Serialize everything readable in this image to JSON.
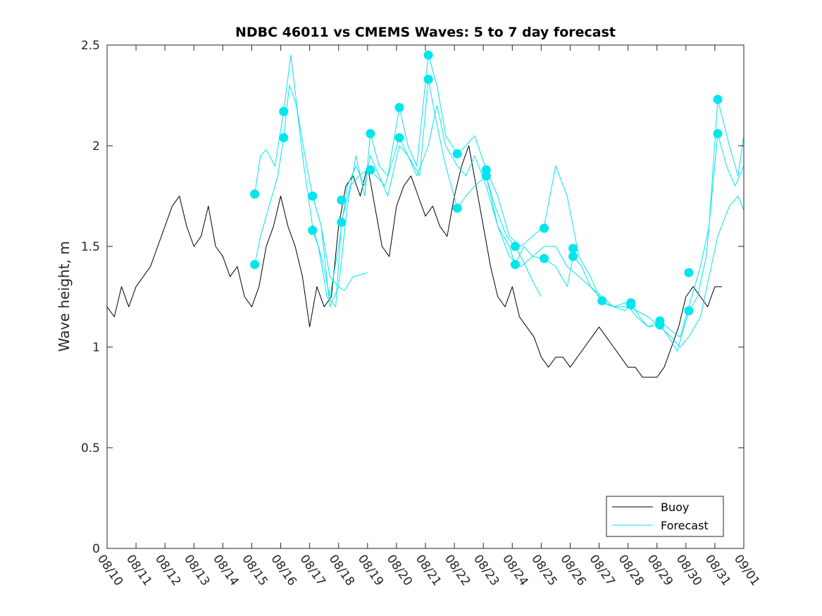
{
  "chart_data": {
    "type": "line",
    "title": "NDBC 46011 vs CMEMS Waves: 5 to 7 day forecast",
    "xlabel": "",
    "ylabel": "Wave height, m",
    "xlim": [
      0,
      22
    ],
    "ylim": [
      0,
      2.5
    ],
    "x_tick_values": [
      0,
      1,
      2,
      3,
      4,
      5,
      6,
      7,
      8,
      9,
      10,
      11,
      12,
      13,
      14,
      15,
      16,
      17,
      18,
      19,
      20,
      21,
      22
    ],
    "x_tick_labels": [
      "08/10",
      "08/11",
      "08/12",
      "08/13",
      "08/14",
      "08/15",
      "08/16",
      "08/17",
      "08/18",
      "08/19",
      "08/20",
      "08/21",
      "08/22",
      "08/23",
      "08/24",
      "08/25",
      "08/26",
      "08/27",
      "08/28",
      "08/29",
      "08/30",
      "08/31",
      "09/01"
    ],
    "y_tick_values": [
      0,
      0.5,
      1,
      1.5,
      2,
      2.5
    ],
    "y_tick_labels": [
      "0",
      "0.5",
      "1",
      "1.5",
      "2",
      "2.5"
    ],
    "legend": {
      "position": "bottom-right",
      "entries": [
        {
          "label": "Buoy",
          "color": "#000000"
        },
        {
          "label": "Forecast",
          "color": "#00e5ee"
        }
      ]
    },
    "series": [
      {
        "name": "Buoy",
        "color": "#000000",
        "x": [
          0,
          0.25,
          0.5,
          0.75,
          1,
          1.25,
          1.5,
          1.75,
          2,
          2.25,
          2.5,
          2.75,
          3,
          3.25,
          3.5,
          3.75,
          4,
          4.25,
          4.5,
          4.75,
          5,
          5.25,
          5.5,
          5.75,
          6,
          6.25,
          6.5,
          6.75,
          7,
          7.25,
          7.5,
          7.75,
          8,
          8.25,
          8.5,
          8.75,
          9,
          9.25,
          9.5,
          9.75,
          10,
          10.25,
          10.5,
          10.75,
          11,
          11.25,
          11.5,
          11.75,
          12,
          12.25,
          12.5,
          12.75,
          13,
          13.25,
          13.5,
          13.75,
          14,
          14.25,
          14.5,
          14.75,
          15,
          15.25,
          15.5,
          15.75,
          16,
          16.25,
          16.5,
          16.75,
          17,
          17.25,
          17.5,
          17.75,
          18,
          18.25,
          18.5,
          18.75,
          19,
          19.25,
          19.5,
          19.75,
          20,
          20.25,
          20.5,
          20.75,
          21,
          21.25
        ],
        "values": [
          1.2,
          1.15,
          1.3,
          1.2,
          1.3,
          1.35,
          1.4,
          1.5,
          1.6,
          1.7,
          1.75,
          1.6,
          1.5,
          1.55,
          1.7,
          1.5,
          1.45,
          1.35,
          1.4,
          1.25,
          1.2,
          1.3,
          1.5,
          1.6,
          1.75,
          1.6,
          1.5,
          1.35,
          1.1,
          1.3,
          1.2,
          1.25,
          1.6,
          1.8,
          1.85,
          1.75,
          1.9,
          1.7,
          1.5,
          1.45,
          1.7,
          1.8,
          1.85,
          1.75,
          1.65,
          1.7,
          1.6,
          1.55,
          1.75,
          1.9,
          2.0,
          1.8,
          1.6,
          1.4,
          1.25,
          1.2,
          1.3,
          1.15,
          1.1,
          1.05,
          0.95,
          0.9,
          0.95,
          0.95,
          0.9,
          0.95,
          1.0,
          1.05,
          1.1,
          1.05,
          1.0,
          0.95,
          0.9,
          0.9,
          0.85,
          0.85,
          0.85,
          0.9,
          1.0,
          1.1,
          1.25,
          1.3,
          1.25,
          1.2,
          1.3,
          1.3
        ]
      },
      {
        "name": "Forecast",
        "color": "#00e5ee",
        "x": [
          5.1,
          5.3,
          5.6,
          5.9,
          6.1,
          6.3,
          6.55,
          6.8,
          7.1,
          7.4,
          7.7,
          8.0,
          8.3,
          8.6,
          8.9,
          9.1,
          9.4,
          9.7,
          10.1,
          10.4,
          10.7,
          11.1,
          11.4,
          11.7,
          12.1,
          12.4,
          12.7,
          13.1,
          13.5,
          13.9,
          14.3,
          14.7,
          15.1,
          15.5,
          15.9,
          16.3,
          16.7,
          17.1,
          17.5,
          17.9,
          18.3,
          18.7,
          19.1,
          19.5,
          19.8,
          20.1,
          20.5,
          20.8,
          21.1,
          21.5,
          21.8,
          22.0
        ],
        "values": [
          1.41,
          1.55,
          1.7,
          1.85,
          2.04,
          2.3,
          2.2,
          1.9,
          1.6,
          1.45,
          1.25,
          1.5,
          1.8,
          1.9,
          1.8,
          1.95,
          1.85,
          1.75,
          2.0,
          1.95,
          1.85,
          2.0,
          2.2,
          2.0,
          1.9,
          1.85,
          1.95,
          1.8,
          1.6,
          1.45,
          1.4,
          1.45,
          1.5,
          1.5,
          1.4,
          1.35,
          1.3,
          1.25,
          1.2,
          1.2,
          1.18,
          1.15,
          1.1,
          1.05,
          1.0,
          1.05,
          1.15,
          1.35,
          1.55,
          1.7,
          1.75,
          1.68
        ]
      },
      {
        "name": "Forecast",
        "color": "#00e5ee",
        "x": [
          5.1,
          5.3,
          5.5,
          5.8,
          6.1,
          6.35,
          6.6,
          6.9,
          7.1,
          7.4,
          7.7,
          8.0,
          8.3,
          8.6,
          8.9,
          9.1,
          9.4,
          9.7,
          10.1,
          10.4,
          10.7,
          11.1,
          11.4,
          11.7,
          12.1,
          12.4,
          12.7,
          13.1,
          13.5,
          13.9,
          14.3,
          14.7,
          15.1,
          15.5,
          15.9,
          16.3,
          16.7,
          17.1,
          17.5,
          17.9,
          18.3,
          18.7,
          19.1,
          19.5,
          19.8,
          20.1,
          20.5,
          20.8,
          21.1,
          21.5,
          21.8,
          22.0
        ],
        "values": [
          1.76,
          1.95,
          1.98,
          1.9,
          2.17,
          2.45,
          2.15,
          1.9,
          1.75,
          1.6,
          1.35,
          1.3,
          1.7,
          1.95,
          1.75,
          2.06,
          1.9,
          1.85,
          2.19,
          2.0,
          1.9,
          2.45,
          2.3,
          2.05,
          1.96,
          2.0,
          2.05,
          1.88,
          1.75,
          1.55,
          1.5,
          1.55,
          1.6,
          1.9,
          1.75,
          1.45,
          1.35,
          1.22,
          1.2,
          1.22,
          1.15,
          1.1,
          1.13,
          1.08,
          1.05,
          1.2,
          1.4,
          1.6,
          2.23,
          2.0,
          1.85,
          2.05
        ]
      },
      {
        "name": "Forecast",
        "color": "#00e5ee",
        "x": [
          7.1,
          7.3,
          7.6,
          7.9,
          8.1,
          8.4,
          8.7,
          9.0,
          9.3,
          9.6,
          10.1,
          10.4,
          10.8,
          11.1,
          11.4,
          11.7,
          12.1,
          12.4,
          12.7,
          13.1,
          13.5,
          13.9,
          14.1,
          14.4,
          14.7,
          15.1,
          15.5,
          15.9,
          16.1,
          16.4,
          16.7,
          17.1,
          17.5,
          17.9,
          18.1,
          18.4,
          18.7,
          19.1,
          19.4,
          19.7,
          20.1,
          20.4,
          20.7,
          21.1,
          21.4,
          21.7,
          22.0
        ],
        "values": [
          1.58,
          1.5,
          1.25,
          1.2,
          1.62,
          1.8,
          1.85,
          1.88,
          1.85,
          1.8,
          2.04,
          1.95,
          1.85,
          2.33,
          2.1,
          1.9,
          1.69,
          1.75,
          1.8,
          1.85,
          1.6,
          1.5,
          1.41,
          1.5,
          1.45,
          1.44,
          1.4,
          1.3,
          1.45,
          1.4,
          1.3,
          1.23,
          1.2,
          1.18,
          1.22,
          1.15,
          1.1,
          1.11,
          1.05,
          0.98,
          1.18,
          1.25,
          1.45,
          2.06,
          1.9,
          1.8,
          1.9
        ]
      },
      {
        "name": "Forecast",
        "color": "#00e5ee",
        "x": [
          7.1,
          7.4,
          7.7,
          8.0,
          8.2,
          8.5,
          8.8,
          9.0
        ],
        "values": [
          1.75,
          1.6,
          1.2,
          1.3,
          1.28,
          1.35,
          1.36,
          1.37
        ]
      },
      {
        "name": "Forecast",
        "color": "#00e5ee",
        "x": [
          13.1,
          13.4,
          13.8,
          14.1,
          14.4,
          14.7,
          15.0
        ],
        "values": [
          1.85,
          1.7,
          1.55,
          1.5,
          1.42,
          1.33,
          1.25
        ]
      }
    ],
    "markers": {
      "name": "Forecast start points",
      "color": "#00e5ee",
      "x": [
        5.1,
        5.1,
        6.1,
        6.1,
        7.1,
        7.1,
        8.1,
        8.1,
        9.1,
        9.1,
        10.1,
        10.1,
        11.1,
        11.1,
        12.1,
        12.1,
        13.1,
        13.1,
        14.1,
        14.1,
        15.1,
        15.1,
        16.1,
        16.1,
        17.1,
        18.1,
        18.1,
        19.1,
        19.1,
        20.1,
        20.1,
        21.1,
        21.1
      ],
      "values": [
        1.76,
        1.41,
        2.17,
        2.04,
        1.75,
        1.58,
        1.73,
        1.62,
        2.06,
        1.88,
        2.19,
        2.04,
        2.45,
        2.33,
        1.96,
        1.69,
        1.88,
        1.85,
        1.5,
        1.41,
        1.59,
        1.44,
        1.49,
        1.45,
        1.23,
        1.22,
        1.21,
        1.13,
        1.11,
        1.37,
        1.18,
        2.23,
        2.06
      ]
    }
  }
}
